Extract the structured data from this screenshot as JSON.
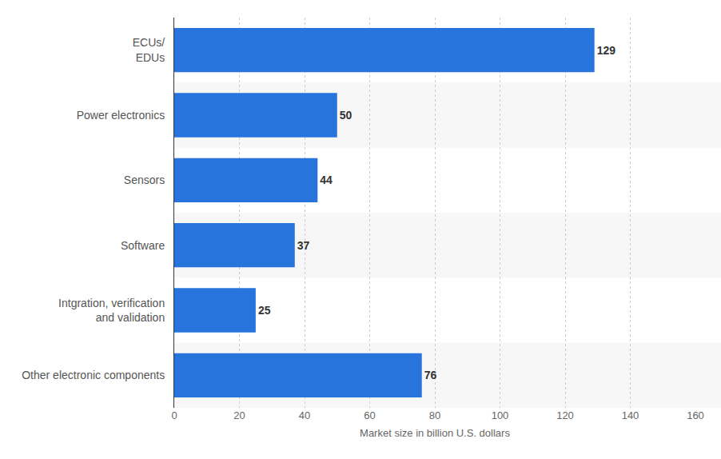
{
  "chart_data": {
    "type": "bar",
    "orientation": "horizontal",
    "categories": [
      "ECUs/\nEDUs",
      "Power electronics",
      "Sensors",
      "Software",
      "Intgration, verification\nand validation",
      "Other electronic components"
    ],
    "values": [
      129,
      50,
      44,
      37,
      25,
      76
    ],
    "color": "#2874dd",
    "x_label": "Market size in billion U.S. dollars",
    "xlim": [
      0,
      160
    ],
    "xticks": [
      0,
      20,
      40,
      60,
      80,
      100,
      120,
      140,
      160
    ],
    "grid": true,
    "data_labels": true
  }
}
